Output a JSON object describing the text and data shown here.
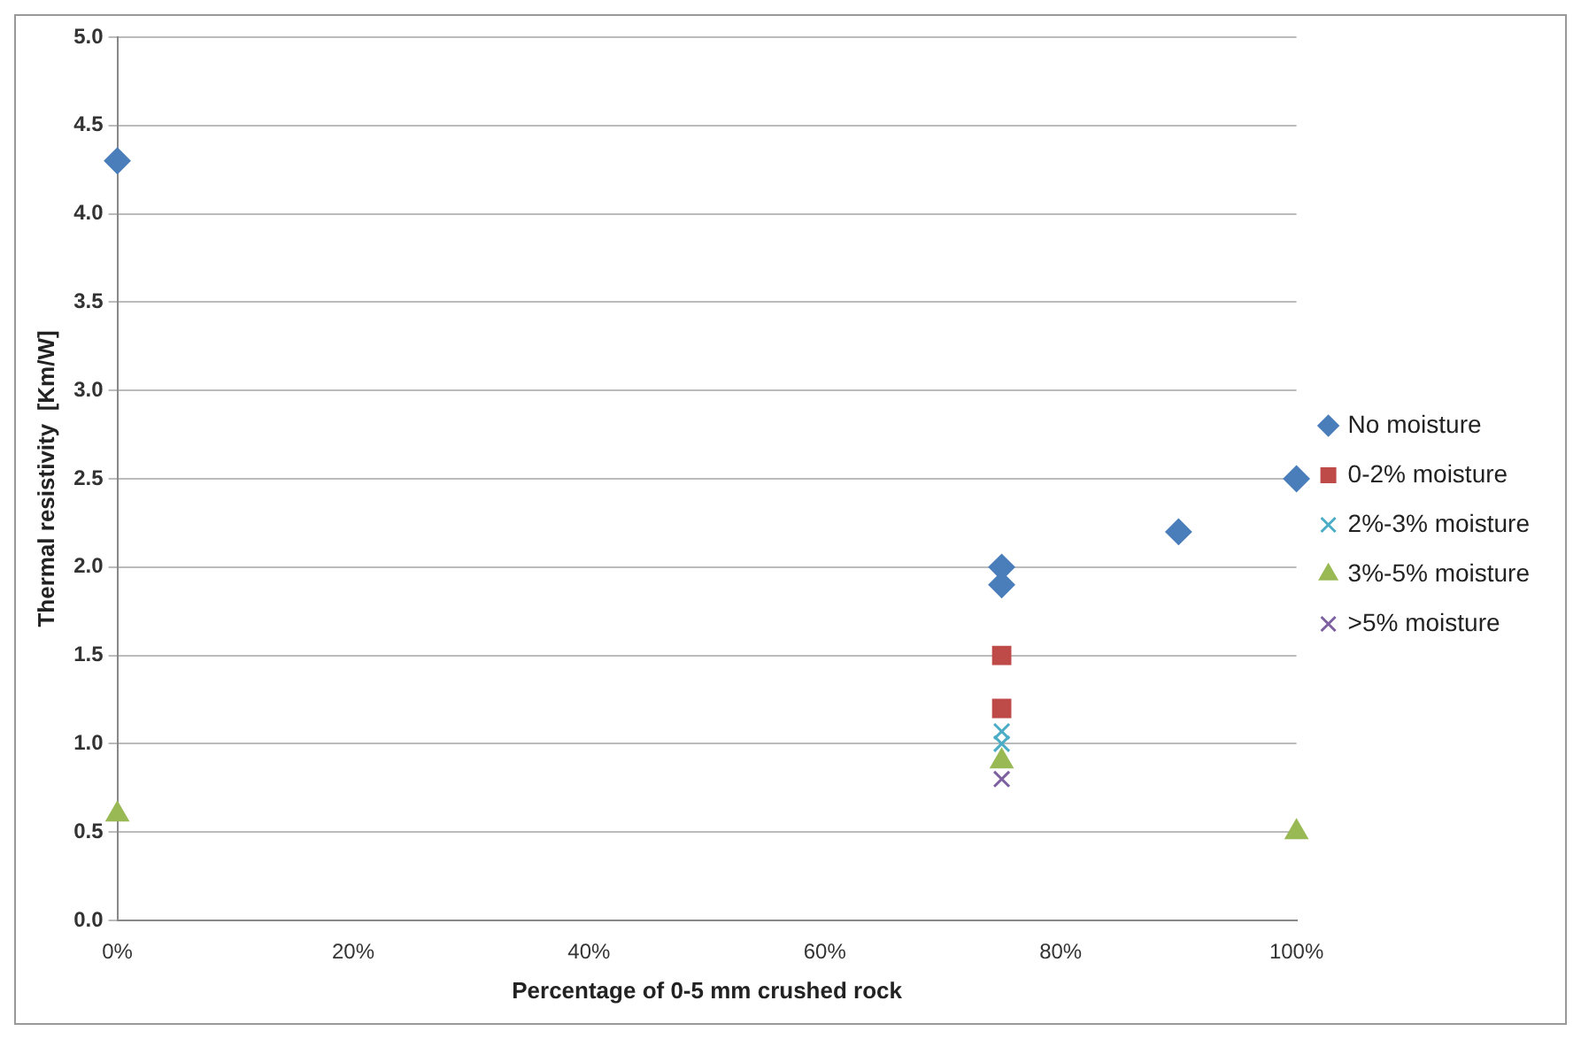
{
  "chart_data": {
    "type": "scatter",
    "xlabel": "Percentage of 0-5 mm crushed rock",
    "ylabel": "Thermal resistivity  [Km/W]",
    "xlim": [
      0,
      100
    ],
    "xticks": [
      {
        "value": 0,
        "label": "0%"
      },
      {
        "value": 20,
        "label": "20%"
      },
      {
        "value": 40,
        "label": "40%"
      },
      {
        "value": 60,
        "label": "60%"
      },
      {
        "value": 80,
        "label": "80%"
      },
      {
        "value": 100,
        "label": "100%"
      }
    ],
    "ylim": [
      0,
      5
    ],
    "yticks": [
      {
        "value": 0,
        "label": "0.0"
      },
      {
        "value": 0.5,
        "label": "0.5"
      },
      {
        "value": 1,
        "label": "1.0"
      },
      {
        "value": 1.5,
        "label": "1.5"
      },
      {
        "value": 2,
        "label": "2.0"
      },
      {
        "value": 2.5,
        "label": "2.5"
      },
      {
        "value": 3,
        "label": "3.0"
      },
      {
        "value": 3.5,
        "label": "3.5"
      },
      {
        "value": 4,
        "label": "4.0"
      },
      {
        "value": 4.5,
        "label": "4.5"
      },
      {
        "value": 5,
        "label": "5.0"
      }
    ],
    "grid": "y",
    "legend": "right",
    "series": [
      {
        "name": "No moisture",
        "color": "#4a7ebb",
        "marker": "diamond",
        "x": [
          0,
          75,
          75,
          90,
          100
        ],
        "values": [
          4.3,
          2.0,
          1.9,
          2.2,
          2.5
        ]
      },
      {
        "name": "0-2% moisture",
        "color": "#be4b48",
        "marker": "square",
        "x": [
          75,
          75
        ],
        "values": [
          1.5,
          1.2
        ]
      },
      {
        "name": "2%-3% moisture",
        "color": "#4bacc6",
        "marker": "cross",
        "x": [
          75,
          75
        ],
        "values": [
          1.07,
          1.0
        ]
      },
      {
        "name": "3%-5% moisture",
        "color": "#98b954",
        "marker": "triangle",
        "x": [
          0,
          75,
          100
        ],
        "values": [
          0.6,
          0.9,
          0.5
        ]
      },
      {
        "name": ">5% moisture",
        "color": "#7d60a0",
        "marker": "cross",
        "x": [
          75
        ],
        "values": [
          0.8
        ]
      }
    ]
  }
}
